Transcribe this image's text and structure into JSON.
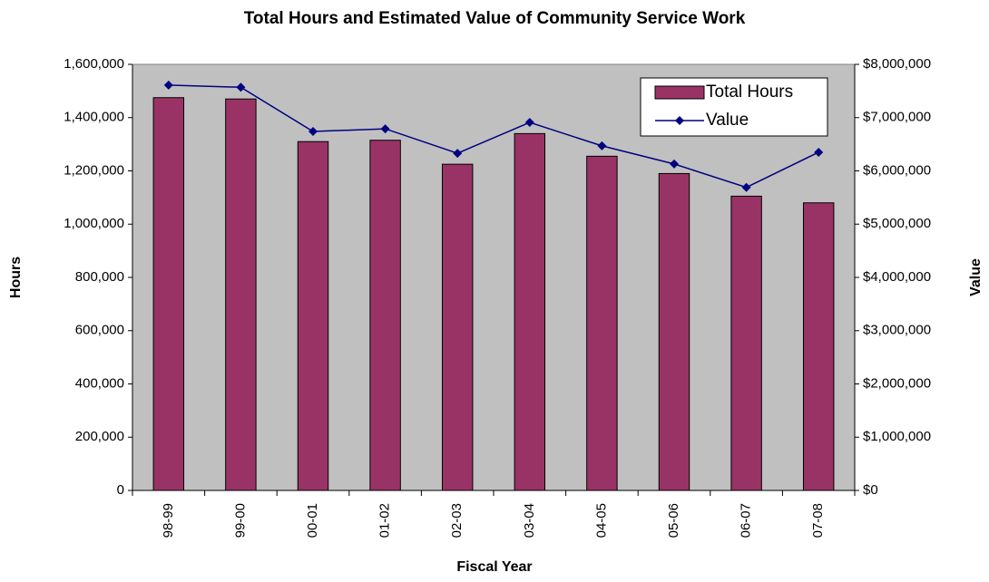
{
  "chart_data": {
    "type": "bar",
    "title": "Total Hours and Estimated Value of Community Service Work",
    "xlabel": "Fiscal Year",
    "ylabel": "Hours",
    "y2label": "Value",
    "categories": [
      "98-99",
      "99-00",
      "00-01",
      "01-02",
      "02-03",
      "03-04",
      "04-05",
      "05-06",
      "06-07",
      "07-08"
    ],
    "series": [
      {
        "name": "Total Hours",
        "type": "bar",
        "axis": "y",
        "color": "#993366",
        "values": [
          1475000,
          1470000,
          1310000,
          1315000,
          1225000,
          1340000,
          1255000,
          1190000,
          1105000,
          1080000
        ]
      },
      {
        "name": "Value",
        "type": "line",
        "axis": "y2",
        "color": "#000080",
        "values": [
          7610000,
          7570000,
          6740000,
          6790000,
          6330000,
          6910000,
          6470000,
          6130000,
          5690000,
          6350000
        ]
      }
    ],
    "ylim": [
      0,
      1600000
    ],
    "yticks": [
      0,
      {
        "value": 200000,
        "label": "200,000"
      },
      {
        "value": 400000,
        "label": "400,000"
      },
      {
        "value": 600000,
        "label": "600,000"
      },
      {
        "value": 800000,
        "label": "800,000"
      },
      {
        "value": 1000000,
        "label": "1,000,000"
      },
      {
        "value": 1200000,
        "label": "1,200,000"
      },
      {
        "value": 1400000,
        "label": "1,400,000"
      },
      {
        "value": 1600000,
        "label": "1,600,000"
      }
    ],
    "y2lim": [
      0,
      8000000
    ],
    "y2ticks": [
      {
        "value": 0,
        "label": "$0"
      },
      {
        "value": 1000000,
        "label": "$1,000,000"
      },
      {
        "value": 2000000,
        "label": "$2,000,000"
      },
      {
        "value": 3000000,
        "label": "$3,000,000"
      },
      {
        "value": 4000000,
        "label": "$4,000,000"
      },
      {
        "value": 5000000,
        "label": "$5,000,000"
      },
      {
        "value": 6000000,
        "label": "$6,000,000"
      },
      {
        "value": 7000000,
        "label": "$7,000,000"
      },
      {
        "value": 8000000,
        "label": "$8,000,000"
      }
    ],
    "grid": false,
    "legend": "upper right",
    "plot_background": "#c0c0c0"
  }
}
